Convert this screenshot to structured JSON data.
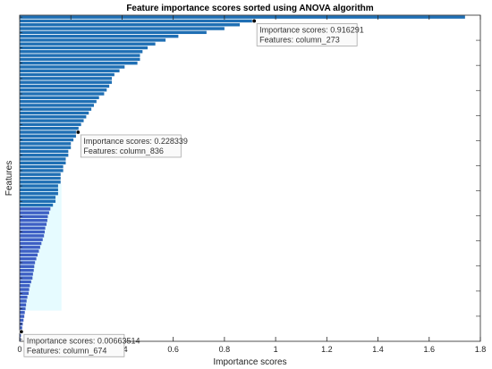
{
  "chart_data": {
    "type": "bar",
    "orientation": "horizontal",
    "title": "Feature importance scores sorted using ANOVA algorithm",
    "xlabel": "Importance scores",
    "ylabel": "Features",
    "xlim": [
      0,
      1.8
    ],
    "xticks": [
      "0",
      "0.2",
      "0.4",
      "0.6",
      "0.8",
      "1",
      "1.2",
      "1.4",
      "1.6",
      "1.8"
    ],
    "grid": false,
    "bar_color": "#1f6fb4",
    "values": [
      1.74,
      0.916,
      0.86,
      0.8,
      0.73,
      0.62,
      0.57,
      0.53,
      0.5,
      0.48,
      0.47,
      0.47,
      0.46,
      0.41,
      0.39,
      0.37,
      0.36,
      0.36,
      0.35,
      0.34,
      0.33,
      0.31,
      0.3,
      0.29,
      0.28,
      0.27,
      0.26,
      0.25,
      0.24,
      0.23,
      0.228,
      0.22,
      0.21,
      0.2,
      0.2,
      0.19,
      0.19,
      0.18,
      0.18,
      0.17,
      0.17,
      0.16,
      0.16,
      0.16,
      0.15,
      0.15,
      0.15,
      0.14,
      0.14,
      0.13,
      0.12,
      0.115,
      0.11,
      0.108,
      0.105,
      0.1,
      0.098,
      0.095,
      0.09,
      0.085,
      0.08,
      0.075,
      0.07,
      0.065,
      0.06,
      0.057,
      0.055,
      0.052,
      0.05,
      0.045,
      0.04,
      0.037,
      0.035,
      0.03,
      0.027,
      0.025,
      0.023,
      0.02,
      0.018,
      0.015,
      0.012,
      0.01,
      0.0066,
      0.005,
      0.004
    ],
    "datatips": [
      {
        "x": 0.916291,
        "bar_index": 1,
        "line1": "Importance scores: 0.916291",
        "line2": "Features: column_273"
      },
      {
        "x": 0.228339,
        "bar_index": 30,
        "line1": "Importance scores: 0.228339",
        "line2": "Features: column_836"
      },
      {
        "x": 0.00663514,
        "bar_index": 82,
        "line1": "Importance scores: 0.00663514",
        "line2": "Features: column_674"
      }
    ]
  }
}
